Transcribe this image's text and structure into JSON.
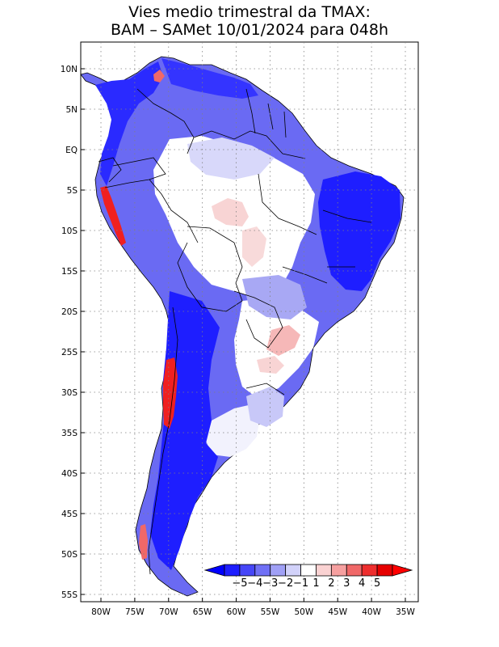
{
  "title": {
    "line1": "Vies medio trimestral da TMAX:",
    "line2": "BAM – SAMet 10/01/2024  para 048h"
  },
  "lat_labels": [
    "10N",
    "5N",
    "EQ",
    "5S",
    "10S",
    "15S",
    "20S",
    "25S",
    "30S",
    "35S",
    "40S",
    "45S",
    "50S",
    "55S"
  ],
  "lon_labels": [
    "80W",
    "75W",
    "70W",
    "65W",
    "60W",
    "55W",
    "50W",
    "45W",
    "40W",
    "35W"
  ],
  "colorbar": {
    "labels": [
      "−5",
      "−4",
      "−3",
      "−2",
      "−1",
      "1",
      "2",
      "3",
      "4",
      "5"
    ],
    "colors": [
      "#1e1eff",
      "#4646f8",
      "#7070f6",
      "#a0a0f6",
      "#d2d2fa",
      "#ffffff",
      "#fad2d2",
      "#f6a0a0",
      "#f06868",
      "#ee2e2e",
      "#e60000"
    ],
    "under_color": "#0000ff",
    "over_color": "#ff0000"
  },
  "colors": {
    "land_default": "#ffffff",
    "strong_neg": "#1e1eff",
    "mid_neg": "#5a5af2",
    "light_neg": "#a8a8f4",
    "pale_neg": "#d8d8fa",
    "pale_pos": "#f8d4d4",
    "strong_pos": "#f03030",
    "grid": "#808080",
    "border": "#000000"
  }
}
